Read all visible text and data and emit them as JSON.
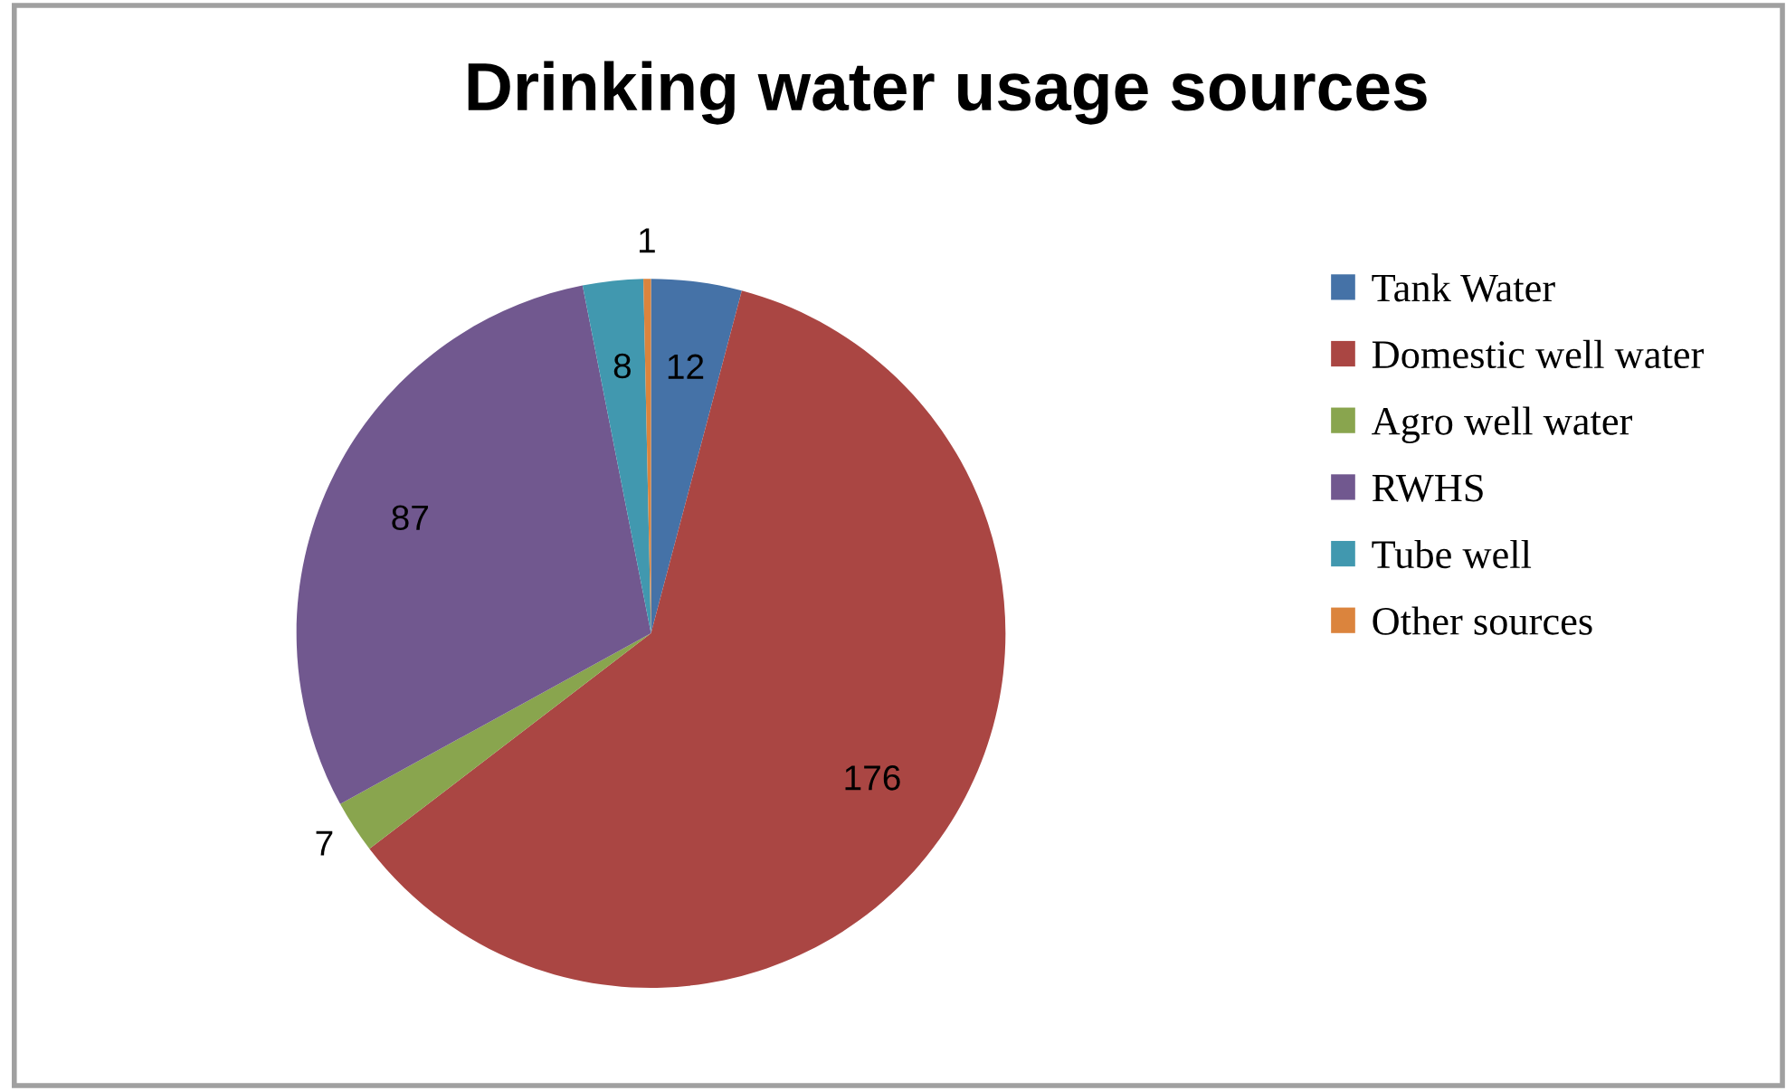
{
  "chart_data": {
    "type": "pie",
    "title": "Drinking water usage sources",
    "categories": [
      "Tank Water",
      "Domestic well water",
      "Agro well water",
      "RWHS",
      "Tube well",
      "Other sources"
    ],
    "values": [
      12,
      176,
      7,
      87,
      8,
      1
    ],
    "colors": [
      "#4572a7",
      "#aa4643",
      "#89a54e",
      "#71588f",
      "#4198af",
      "#db843d"
    ],
    "data_labels": true,
    "legend": "right"
  }
}
